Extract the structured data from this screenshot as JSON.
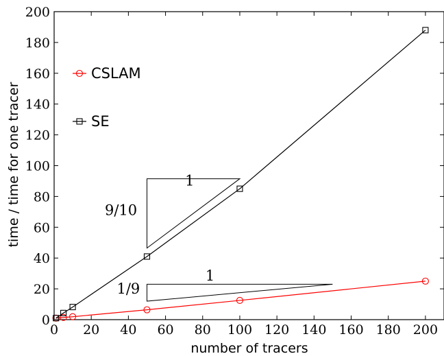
{
  "chart_data": {
    "type": "line",
    "xlabel": "number of tracers",
    "ylabel": "time / time for one tracer",
    "xlim": [
      0,
      210
    ],
    "ylim": [
      0,
      200
    ],
    "xticks": [
      0,
      20,
      40,
      60,
      80,
      100,
      120,
      140,
      160,
      180,
      200
    ],
    "yticks": [
      0,
      20,
      40,
      60,
      80,
      100,
      120,
      140,
      160,
      180,
      200
    ],
    "grid": false,
    "legend_position": "left",
    "series": [
      {
        "name": "CSLAM",
        "color": "#ff0000",
        "marker": "circle",
        "x": [
          1,
          5,
          10,
          50,
          100,
          200
        ],
        "y": [
          1,
          1.4,
          1.9,
          6.4,
          12.5,
          25
        ]
      },
      {
        "name": "SE",
        "color": "#000000",
        "marker": "square",
        "x": [
          1,
          5,
          10,
          50,
          100,
          200
        ],
        "y": [
          1,
          4.3,
          8.2,
          41,
          85,
          188
        ]
      }
    ],
    "annotations": [
      {
        "kind": "slope-triangle",
        "points": [
          [
            50,
            91.5
          ],
          [
            100,
            91.5
          ],
          [
            50,
            46.5
          ]
        ],
        "rise_label": "9/10",
        "run_label": "1",
        "rise_label_pos": [
          36,
          68
        ],
        "run_label_pos": [
          73,
          87
        ]
      },
      {
        "kind": "slope-triangle",
        "points": [
          [
            50,
            23
          ],
          [
            150,
            23
          ],
          [
            50,
            12
          ]
        ],
        "rise_label": "1/9",
        "run_label": "1",
        "rise_label_pos": [
          40,
          17
        ],
        "run_label_pos": [
          84,
          25.5
        ]
      }
    ]
  }
}
